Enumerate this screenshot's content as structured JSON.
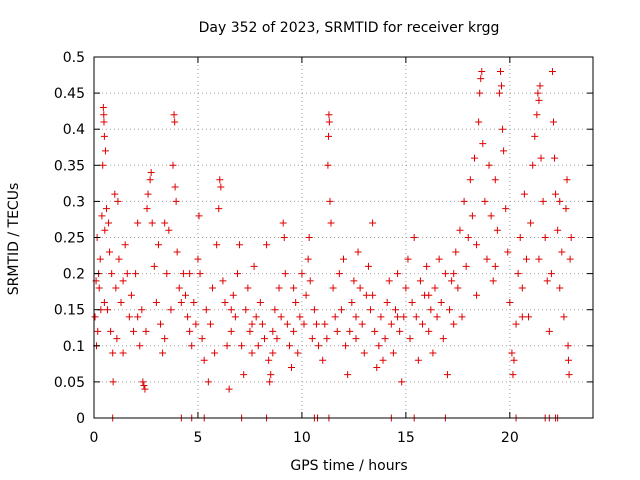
{
  "chart_data": {
    "type": "scatter",
    "title": "Day 352 of 2023, SRMTID for receiver krgg",
    "xlabel": "GPS time / hours",
    "ylabel": "SRMTID / TECUs",
    "xlim": [
      0,
      24
    ],
    "ylim": [
      0,
      0.5
    ],
    "xticks": [
      0,
      5,
      10,
      15,
      20
    ],
    "xtick_labels": [
      "0",
      "5",
      "10",
      "15",
      "20"
    ],
    "yticks": [
      0,
      0.05,
      0.1,
      0.15,
      0.2,
      0.25,
      0.3,
      0.35,
      0.4,
      0.45,
      0.5
    ],
    "ytick_labels": [
      "0",
      "0.05",
      "0.1",
      "0.15",
      "0.2",
      "0.25",
      "0.3",
      "0.35",
      "0.4",
      "0.45",
      "0.5"
    ],
    "grid": true,
    "marker": "+",
    "series": [
      {
        "name": "SRMTID",
        "color": "#dd0000",
        "points": [
          [
            0.05,
            0.14
          ],
          [
            0.1,
            0.19
          ],
          [
            0.12,
            0.1
          ],
          [
            0.15,
            0.25
          ],
          [
            0.18,
            0.12
          ],
          [
            0.22,
            0.2
          ],
          [
            0.25,
            0.18
          ],
          [
            0.3,
            0.22
          ],
          [
            0.33,
            0.15
          ],
          [
            0.38,
            0.28
          ],
          [
            0.42,
            0.35
          ],
          [
            0.45,
            0.43
          ],
          [
            0.47,
            0.42
          ],
          [
            0.48,
            0.41
          ],
          [
            0.5,
            0.39
          ],
          [
            0.52,
            0.26
          ],
          [
            0.55,
            0.37
          ],
          [
            0.6,
            0.29
          ],
          [
            0.65,
            0.15
          ],
          [
            0.7,
            0.27
          ],
          [
            0.75,
            0.23
          ],
          [
            0.8,
            0.12
          ],
          [
            0.85,
            0.2
          ],
          [
            0.9,
            0.09
          ],
          [
            0.92,
            0.05
          ],
          [
            1.0,
            0.31
          ],
          [
            1.05,
            0.18
          ],
          [
            1.1,
            0.11
          ],
          [
            1.15,
            0.3
          ],
          [
            1.2,
            0.22
          ],
          [
            1.3,
            0.16
          ],
          [
            1.4,
            0.09
          ],
          [
            1.5,
            0.24
          ],
          [
            1.6,
            0.2
          ],
          [
            1.7,
            0.14
          ],
          [
            1.8,
            0.17
          ],
          [
            1.9,
            0.12
          ],
          [
            2.0,
            0.2
          ],
          [
            2.1,
            0.27
          ],
          [
            2.2,
            0.1
          ],
          [
            2.3,
            0.15
          ],
          [
            2.35,
            0.05
          ],
          [
            2.4,
            0.045
          ],
          [
            2.45,
            0.04
          ],
          [
            2.5,
            0.12
          ],
          [
            2.55,
            0.29
          ],
          [
            2.6,
            0.31
          ],
          [
            2.7,
            0.33
          ],
          [
            2.75,
            0.34
          ],
          [
            2.8,
            0.27
          ],
          [
            2.9,
            0.21
          ],
          [
            3.0,
            0.16
          ],
          [
            3.1,
            0.24
          ],
          [
            3.2,
            0.13
          ],
          [
            3.3,
            0.09
          ],
          [
            3.4,
            0.27
          ],
          [
            3.5,
            0.2
          ],
          [
            3.6,
            0.26
          ],
          [
            3.7,
            0.15
          ],
          [
            3.8,
            0.35
          ],
          [
            3.85,
            0.42
          ],
          [
            3.88,
            0.41
          ],
          [
            3.9,
            0.32
          ],
          [
            3.95,
            0.3
          ],
          [
            4.0,
            0.23
          ],
          [
            4.1,
            0.18
          ],
          [
            4.2,
            0.16
          ],
          [
            4.3,
            0.2
          ],
          [
            4.4,
            0.17
          ],
          [
            4.5,
            0.14
          ],
          [
            4.6,
            0.12
          ],
          [
            4.7,
            0.1
          ],
          [
            4.8,
            0.16
          ],
          [
            4.9,
            0.13
          ],
          [
            5.0,
            0.22
          ],
          [
            5.05,
            0.28
          ],
          [
            5.1,
            0.2
          ],
          [
            5.2,
            0.11
          ],
          [
            5.3,
            0.08
          ],
          [
            5.4,
            0.15
          ],
          [
            5.5,
            0.05
          ],
          [
            5.6,
            0.13
          ],
          [
            5.7,
            0.18
          ],
          [
            5.8,
            0.09
          ],
          [
            5.9,
            0.24
          ],
          [
            6.0,
            0.29
          ],
          [
            6.05,
            0.33
          ],
          [
            6.1,
            0.32
          ],
          [
            6.2,
            0.19
          ],
          [
            6.3,
            0.16
          ],
          [
            6.4,
            0.1
          ],
          [
            6.5,
            0.04
          ],
          [
            6.6,
            0.12
          ],
          [
            6.7,
            0.17
          ],
          [
            6.8,
            0.14
          ],
          [
            6.9,
            0.2
          ],
          [
            7.0,
            0.24
          ],
          [
            7.1,
            0.1
          ],
          [
            7.2,
            0.06
          ],
          [
            7.3,
            0.15
          ],
          [
            7.4,
            0.18
          ],
          [
            7.5,
            0.12
          ],
          [
            7.6,
            0.09
          ],
          [
            7.7,
            0.21
          ],
          [
            7.8,
            0.14
          ],
          [
            7.9,
            0.1
          ],
          [
            8.0,
            0.16
          ],
          [
            8.1,
            0.13
          ],
          [
            8.2,
            0.11
          ],
          [
            8.3,
            0.24
          ],
          [
            8.4,
            0.08
          ],
          [
            8.45,
            0.05
          ],
          [
            8.5,
            0.06
          ],
          [
            8.6,
            0.12
          ],
          [
            8.7,
            0.15
          ],
          [
            8.8,
            0.11
          ],
          [
            8.9,
            0.18
          ],
          [
            9.0,
            0.14
          ],
          [
            9.1,
            0.27
          ],
          [
            9.15,
            0.25
          ],
          [
            9.2,
            0.2
          ],
          [
            9.3,
            0.13
          ],
          [
            9.4,
            0.1
          ],
          [
            9.5,
            0.07
          ],
          [
            9.6,
            0.12
          ],
          [
            9.7,
            0.16
          ],
          [
            9.8,
            0.09
          ],
          [
            9.9,
            0.14
          ],
          [
            10.0,
            0.2
          ],
          [
            10.1,
            0.13
          ],
          [
            10.2,
            0.17
          ],
          [
            10.3,
            0.22
          ],
          [
            10.35,
            0.25
          ],
          [
            10.4,
            0.19
          ],
          [
            10.5,
            0.11
          ],
          [
            10.6,
            0.15
          ],
          [
            10.7,
            0.13
          ],
          [
            10.8,
            0.1
          ],
          [
            11.0,
            0.08
          ],
          [
            11.1,
            0.13
          ],
          [
            11.2,
            0.11
          ],
          [
            11.25,
            0.35
          ],
          [
            11.28,
            0.39
          ],
          [
            11.3,
            0.42
          ],
          [
            11.32,
            0.41
          ],
          [
            11.35,
            0.3
          ],
          [
            11.4,
            0.27
          ],
          [
            11.5,
            0.18
          ],
          [
            11.6,
            0.14
          ],
          [
            11.7,
            0.12
          ],
          [
            11.8,
            0.2
          ],
          [
            11.9,
            0.15
          ],
          [
            12.0,
            0.22
          ],
          [
            12.1,
            0.1
          ],
          [
            12.2,
            0.06
          ],
          [
            12.3,
            0.12
          ],
          [
            12.4,
            0.16
          ],
          [
            12.5,
            0.19
          ],
          [
            12.6,
            0.14
          ],
          [
            12.7,
            0.23
          ],
          [
            12.8,
            0.18
          ],
          [
            12.9,
            0.13
          ],
          [
            13.0,
            0.09
          ],
          [
            13.1,
            0.17
          ],
          [
            13.2,
            0.21
          ],
          [
            13.3,
            0.15
          ],
          [
            13.4,
            0.27
          ],
          [
            13.5,
            0.12
          ],
          [
            13.6,
            0.07
          ],
          [
            13.7,
            0.1
          ],
          [
            13.8,
            0.14
          ],
          [
            13.9,
            0.08
          ],
          [
            14.0,
            0.11
          ],
          [
            14.1,
            0.16
          ],
          [
            14.2,
            0.19
          ],
          [
            14.3,
            0.13
          ],
          [
            14.4,
            0.09
          ],
          [
            14.5,
            0.15
          ],
          [
            14.6,
            0.2
          ],
          [
            14.7,
            0.12
          ],
          [
            14.8,
            0.05
          ],
          [
            14.9,
            0.14
          ],
          [
            15.0,
            0.18
          ],
          [
            15.1,
            0.22
          ],
          [
            15.2,
            0.11
          ],
          [
            15.3,
            0.16
          ],
          [
            15.4,
            0.25
          ],
          [
            15.5,
            0.14
          ],
          [
            15.6,
            0.08
          ],
          [
            15.7,
            0.19
          ],
          [
            15.8,
            0.13
          ],
          [
            15.9,
            0.17
          ],
          [
            16.0,
            0.21
          ],
          [
            16.1,
            0.12
          ],
          [
            16.2,
            0.15
          ],
          [
            16.3,
            0.09
          ],
          [
            16.4,
            0.18
          ],
          [
            16.5,
            0.14
          ],
          [
            16.6,
            0.22
          ],
          [
            16.7,
            0.16
          ],
          [
            16.8,
            0.11
          ],
          [
            16.9,
            0.2
          ],
          [
            17.0,
            0.06
          ],
          [
            17.1,
            0.15
          ],
          [
            17.2,
            0.19
          ],
          [
            17.3,
            0.13
          ],
          [
            17.4,
            0.23
          ],
          [
            17.5,
            0.18
          ],
          [
            17.6,
            0.26
          ],
          [
            17.7,
            0.14
          ],
          [
            17.8,
            0.3
          ],
          [
            17.9,
            0.21
          ],
          [
            18.0,
            0.25
          ],
          [
            18.1,
            0.33
          ],
          [
            18.2,
            0.28
          ],
          [
            18.3,
            0.36
          ],
          [
            18.4,
            0.24
          ],
          [
            18.5,
            0.41
          ],
          [
            18.55,
            0.45
          ],
          [
            18.6,
            0.47
          ],
          [
            18.65,
            0.48
          ],
          [
            18.7,
            0.38
          ],
          [
            18.8,
            0.3
          ],
          [
            18.9,
            0.22
          ],
          [
            19.0,
            0.35
          ],
          [
            19.1,
            0.28
          ],
          [
            19.2,
            0.19
          ],
          [
            19.3,
            0.33
          ],
          [
            19.4,
            0.26
          ],
          [
            19.5,
            0.45
          ],
          [
            19.55,
            0.48
          ],
          [
            19.6,
            0.46
          ],
          [
            19.65,
            0.4
          ],
          [
            19.7,
            0.37
          ],
          [
            19.8,
            0.29
          ],
          [
            19.9,
            0.23
          ],
          [
            20.0,
            0.16
          ],
          [
            20.1,
            0.09
          ],
          [
            20.15,
            0.06
          ],
          [
            20.2,
            0.08
          ],
          [
            20.3,
            0.13
          ],
          [
            20.4,
            0.2
          ],
          [
            20.5,
            0.25
          ],
          [
            20.6,
            0.18
          ],
          [
            20.7,
            0.31
          ],
          [
            20.8,
            0.22
          ],
          [
            20.9,
            0.14
          ],
          [
            21.0,
            0.27
          ],
          [
            21.1,
            0.35
          ],
          [
            21.2,
            0.39
          ],
          [
            21.3,
            0.42
          ],
          [
            21.35,
            0.45
          ],
          [
            21.4,
            0.44
          ],
          [
            21.45,
            0.46
          ],
          [
            21.5,
            0.36
          ],
          [
            21.6,
            0.3
          ],
          [
            21.7,
            0.25
          ],
          [
            21.8,
            0.19
          ],
          [
            21.9,
            0.12
          ],
          [
            22.0,
            0.2
          ],
          [
            22.05,
            0.48
          ],
          [
            22.1,
            0.41
          ],
          [
            22.15,
            0.36
          ],
          [
            22.2,
            0.31
          ],
          [
            22.3,
            0.26
          ],
          [
            22.4,
            0.18
          ],
          [
            22.5,
            0.23
          ],
          [
            22.6,
            0.14
          ],
          [
            22.7,
            0.29
          ],
          [
            22.75,
            0.33
          ],
          [
            22.8,
            0.1
          ],
          [
            22.82,
            0.08
          ],
          [
            22.85,
            0.06
          ],
          [
            22.9,
            0.22
          ],
          [
            22.95,
            0.25
          ],
          [
            0.5,
            0.16
          ],
          [
            1.4,
            0.19
          ],
          [
            2.1,
            0.14
          ],
          [
            3.4,
            0.11
          ],
          [
            4.6,
            0.2
          ],
          [
            6.6,
            0.15
          ],
          [
            7.6,
            0.13
          ],
          [
            8.6,
            0.09
          ],
          [
            9.6,
            0.18
          ],
          [
            12.6,
            0.11
          ],
          [
            13.4,
            0.17
          ],
          [
            14.6,
            0.14
          ],
          [
            16.1,
            0.17
          ],
          [
            17.3,
            0.2
          ],
          [
            18.4,
            0.17
          ],
          [
            19.3,
            0.21
          ],
          [
            20.6,
            0.14
          ],
          [
            21.4,
            0.22
          ],
          [
            22.4,
            0.3
          ],
          [
            0.9,
            0.0
          ],
          [
            4.2,
            0.0
          ],
          [
            4.7,
            0.0
          ],
          [
            5.3,
            0.0
          ],
          [
            7.1,
            0.0
          ],
          [
            8.3,
            0.0
          ],
          [
            10.6,
            0.0
          ],
          [
            10.75,
            0.0
          ],
          [
            11.3,
            0.0
          ],
          [
            14.3,
            0.0
          ],
          [
            15.4,
            0.0
          ],
          [
            16.9,
            0.0
          ],
          [
            20.3,
            0.0
          ],
          [
            21.7,
            0.0
          ],
          [
            21.9,
            0.0
          ],
          [
            22.2,
            0.0
          ],
          [
            22.3,
            0.0
          ]
        ]
      }
    ]
  }
}
